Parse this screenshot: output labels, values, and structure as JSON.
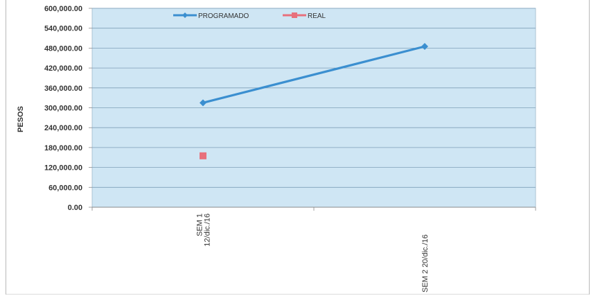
{
  "chart_data": {
    "type": "line",
    "categories": [
      "SEM 1\n12/dic./16",
      "SEM 2   20/dic./16"
    ],
    "category_lines": [
      [
        "SEM 1",
        "12/dic./16"
      ],
      [
        "SEM 2   20/dic./16"
      ]
    ],
    "series": [
      {
        "name": "PROGRAMADO",
        "values": [
          315000,
          485000
        ],
        "color": "#3b8fd0",
        "marker": "diamond",
        "line": true
      },
      {
        "name": "REAL",
        "values": [
          155000,
          null
        ],
        "color": "#e8707c",
        "marker": "square",
        "line": false
      }
    ],
    "ylabel": "PESOS",
    "ylim": [
      0,
      600000
    ],
    "ytick_step": 60000,
    "ytick_labels": [
      "0.00",
      "60,000.00",
      "120,000.00",
      "180,000.00",
      "240,000.00",
      "300,000.00",
      "360,000.00",
      "420,000.00",
      "480,000.00",
      "540,000.00",
      "600,000.00"
    ],
    "grid": true,
    "legend_position": "top-center",
    "plot_background": "#cfe6f4",
    "gridline_color": "#7f9fb8"
  }
}
